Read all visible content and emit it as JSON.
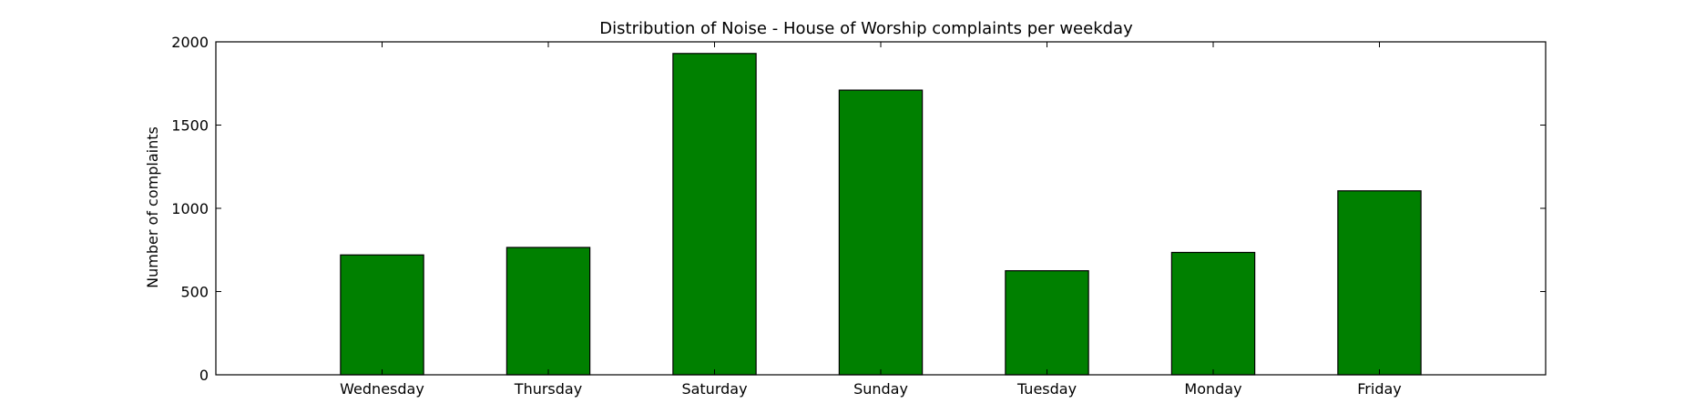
{
  "chart_data": {
    "type": "bar",
    "title": "Distribution of  Noise - House of Worship complaints per weekday",
    "xlabel": "",
    "ylabel": "Number of complaints",
    "categories": [
      "Wednesday",
      "Thursday",
      "Saturday",
      "Sunday",
      "Tuesday",
      "Monday",
      "Friday"
    ],
    "values": [
      720,
      765,
      1930,
      1710,
      625,
      735,
      1105
    ],
    "ylim": [
      0,
      2000
    ],
    "yticks": [
      0,
      500,
      1000,
      1500,
      2000
    ],
    "ytick_labels": [
      "0",
      "500",
      "1000",
      "1500",
      "2000"
    ],
    "grid": false,
    "legend": "none",
    "bar_color": "#008000",
    "edge_color": "#000000"
  }
}
